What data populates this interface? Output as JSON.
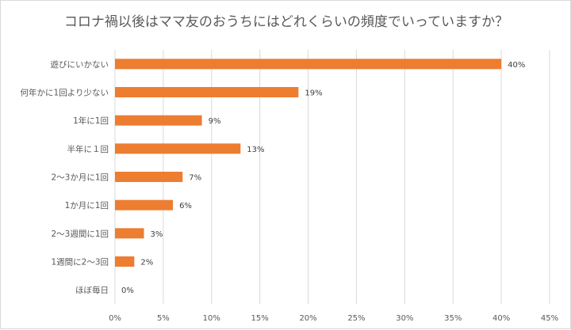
{
  "chart_data": {
    "type": "bar",
    "orientation": "horizontal",
    "title": "コロナ禍以後はママ友のおうちにはどれくらいの頻度でいっていますか？",
    "categories": [
      "遊びにいかない",
      "何年かに1回より少ない",
      "1年に1回",
      "半年に１回",
      "2～3か月に1回",
      "1か月に1回",
      "2～3週間に1回",
      "1週間に2～3回",
      "ほぼ毎日"
    ],
    "values": [
      40,
      19,
      9,
      13,
      7,
      6,
      3,
      2,
      0
    ],
    "data_labels": [
      "40%",
      "19%",
      "9%",
      "13%",
      "7%",
      "6%",
      "3%",
      "2%",
      "0%"
    ],
    "xlim": [
      0,
      45
    ],
    "x_ticks": [
      "0%",
      "5%",
      "10%",
      "15%",
      "20%",
      "25%",
      "30%",
      "35%",
      "40%",
      "45%"
    ],
    "grid": true,
    "bar_color": "#ED7D31",
    "legend": "none"
  }
}
